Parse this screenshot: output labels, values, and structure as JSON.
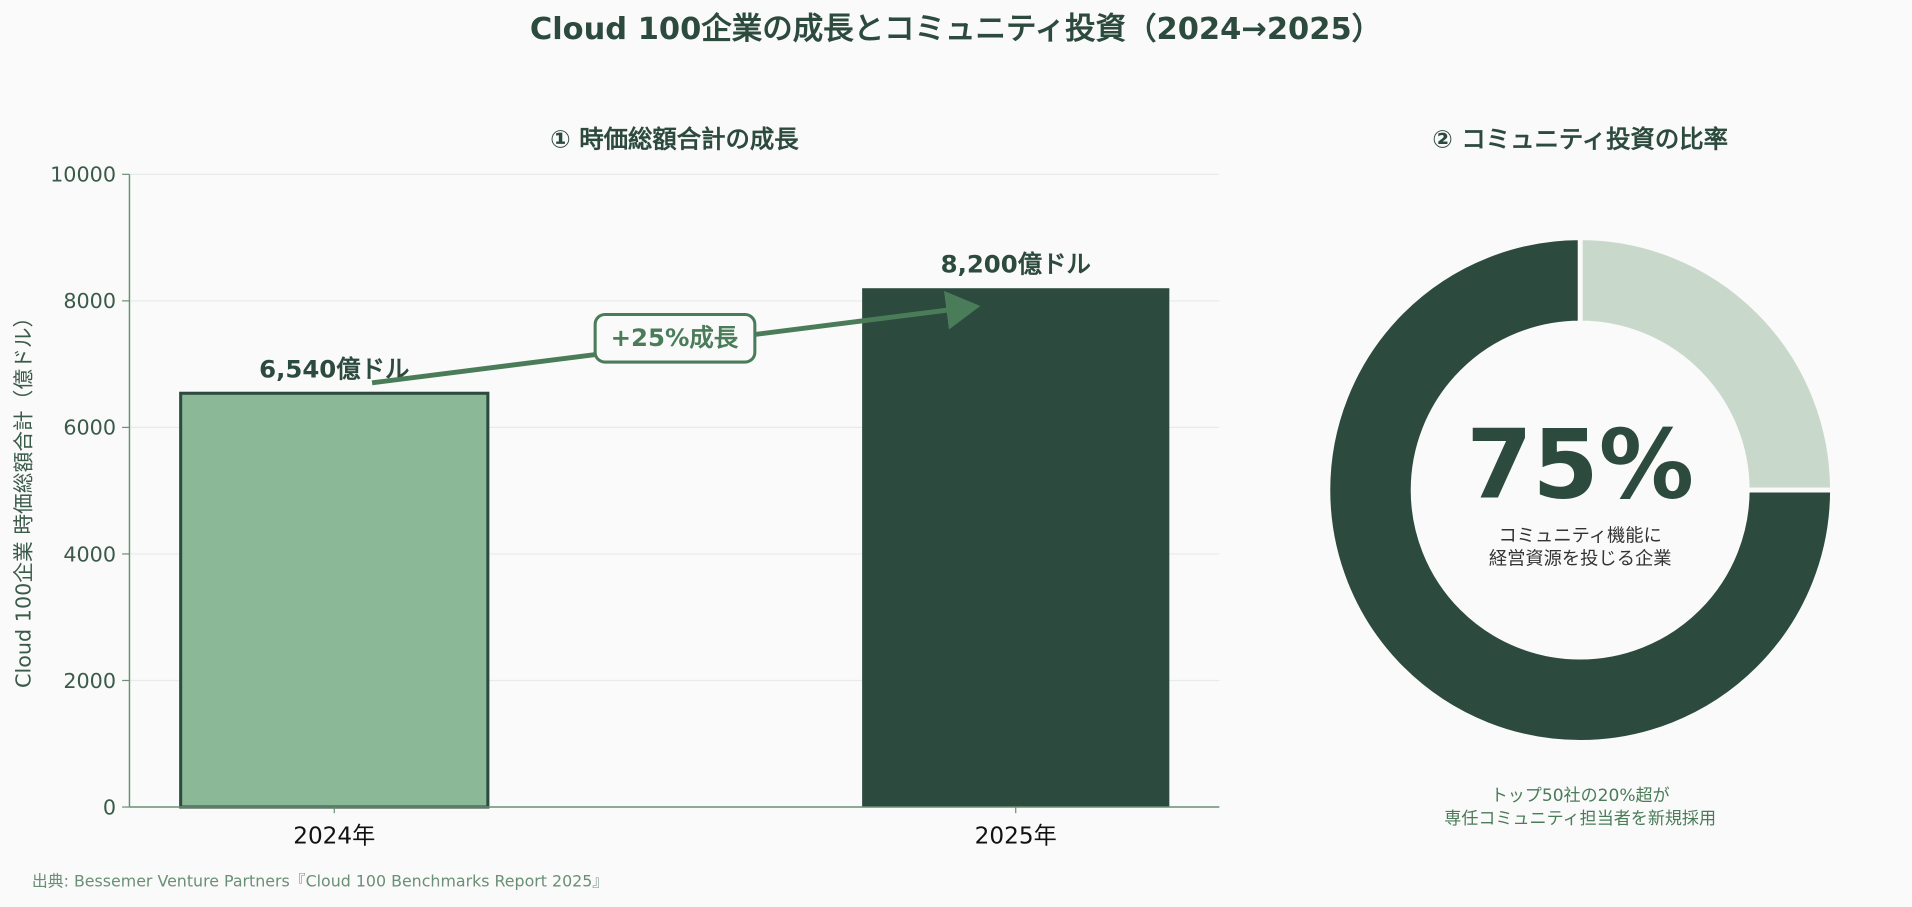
{
  "title": "Cloud 100企業の成長とコミュニティ投資（2024→2025）",
  "source": "出典: Bessemer Venture Partners『Cloud 100 Benchmarks Report 2025』",
  "colors": {
    "dark": "#2d4a3e",
    "light_bar": "#8bb896",
    "accent": "#4a7c59",
    "light_slice": "#c8d9cc",
    "background": "#fafafa"
  },
  "chart_data": [
    {
      "type": "bar",
      "title": "① 時価総額合計の成長",
      "ylabel": "Cloud 100企業 時価総額合計（億ドル）",
      "xlabel": "",
      "categories": [
        "2024年",
        "2025年"
      ],
      "values": [
        6540,
        8200
      ],
      "data_labels": [
        "6,540億ドル",
        "8,200億ドル"
      ],
      "ylim": [
        0,
        10000
      ],
      "yticks": [
        0,
        2000,
        4000,
        6000,
        8000,
        10000
      ],
      "grid": true,
      "annotation": "+25%成長"
    },
    {
      "type": "pie",
      "title": "② コミュニティ投資の比率",
      "values": [
        75,
        25
      ],
      "center_value": "75%",
      "center_label": [
        "コミュニティ機能に",
        "経営資源を投じる企業"
      ],
      "note": [
        "トップ50社の20%超が",
        "専任コミュニティ担当者を新規採用"
      ]
    }
  ]
}
